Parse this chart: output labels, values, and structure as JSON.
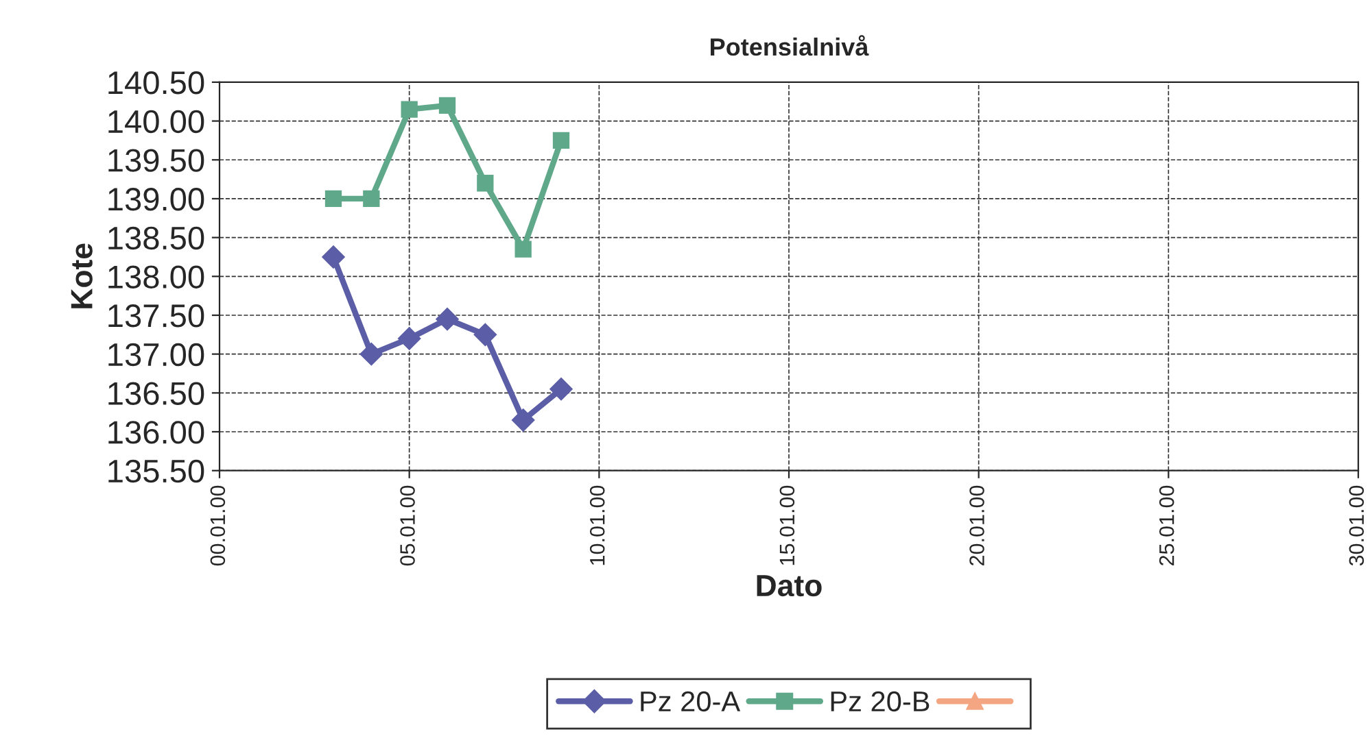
{
  "chart_data": {
    "type": "line",
    "title": "Potensialnivå",
    "xlabel": "Dato",
    "ylabel": "Kote",
    "x": [
      "2000-01-03",
      "2000-01-04",
      "2000-01-05",
      "2000-01-06",
      "2000-01-07",
      "2000-01-08",
      "2000-01-09"
    ],
    "series": [
      {
        "name": "Pz 20-A",
        "color": "#5b5ea6",
        "marker": "diamond",
        "values": [
          138.25,
          137.0,
          137.2,
          137.45,
          137.25,
          136.15,
          136.55
        ]
      },
      {
        "name": "Pz 20-B",
        "color": "#5fa88a",
        "marker": "square",
        "values": [
          139.0,
          139.0,
          140.15,
          140.2,
          139.2,
          138.35,
          139.75
        ]
      },
      {
        "color": "#f4a582",
        "marker": "triangle",
        "values": [
          null,
          null,
          null,
          null,
          null,
          null,
          null
        ]
      }
    ],
    "xlim": [
      "1999-12-31",
      "2000-01-30"
    ],
    "xticks": [
      {
        "value": "1999-12-31",
        "label": "00.01.00"
      },
      {
        "value": "2000-01-05",
        "label": "05.01.00"
      },
      {
        "value": "2000-01-10",
        "label": "10.01.00"
      },
      {
        "value": "2000-01-15",
        "label": "15.01.00"
      },
      {
        "value": "2000-01-20",
        "label": "20.01.00"
      },
      {
        "value": "2000-01-25",
        "label": "25.01.00"
      },
      {
        "value": "2000-01-30",
        "label": "30.01.00"
      }
    ],
    "ylim": [
      135.5,
      140.5
    ],
    "yticks": [
      {
        "value": 135.5,
        "label": "135.50"
      },
      {
        "value": 136.0,
        "label": "136.00"
      },
      {
        "value": 136.5,
        "label": "136.50"
      },
      {
        "value": 137.0,
        "label": "137.00"
      },
      {
        "value": 137.5,
        "label": "137.50"
      },
      {
        "value": 138.0,
        "label": "138.00"
      },
      {
        "value": 138.5,
        "label": "138.50"
      },
      {
        "value": 139.0,
        "label": "139.00"
      },
      {
        "value": 139.5,
        "label": "139.50"
      },
      {
        "value": 140.0,
        "label": "140.00"
      },
      {
        "value": 140.5,
        "label": "140.50"
      }
    ],
    "grid": true,
    "legend": "bottom"
  }
}
